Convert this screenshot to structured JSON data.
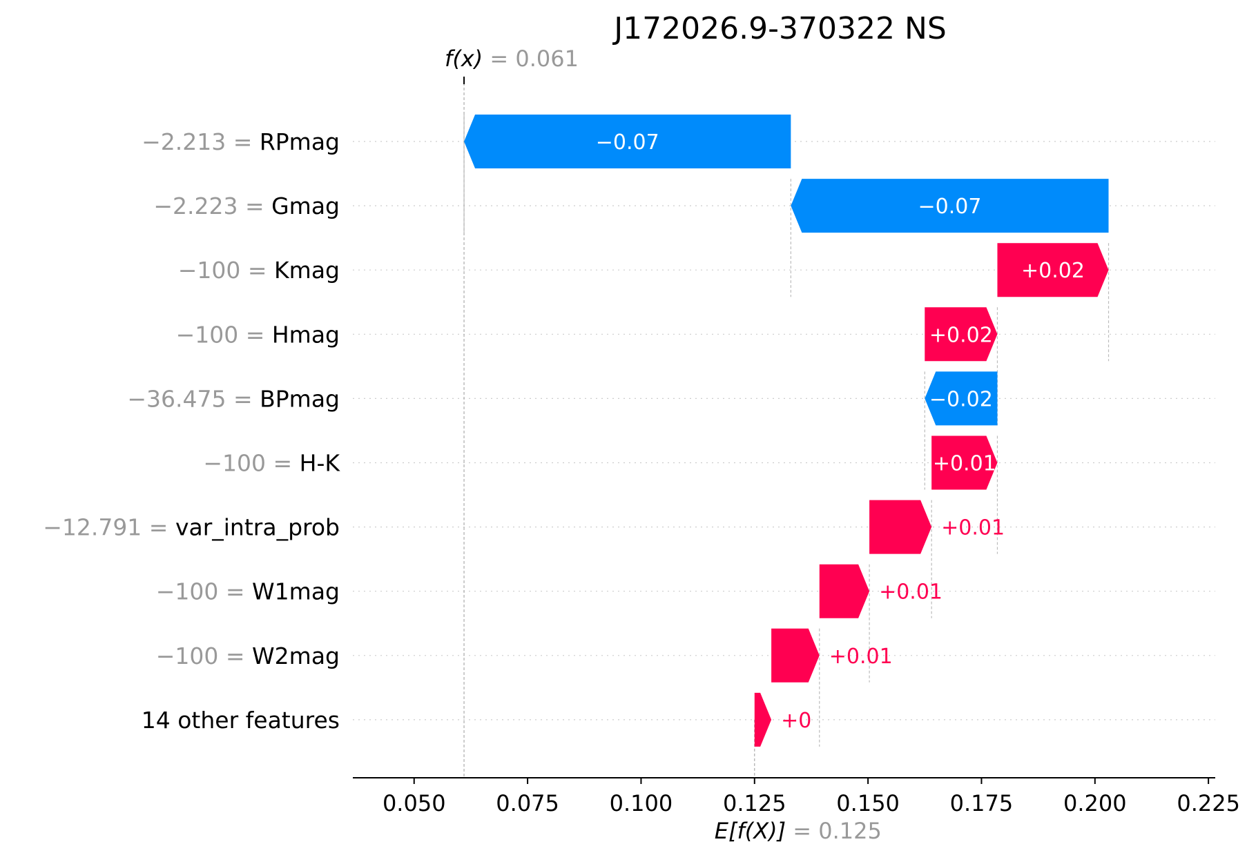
{
  "chart_data": {
    "type": "waterfall",
    "title": "J172026.9-370322 NS",
    "base_value": 0.125,
    "output_value": 0.061,
    "base_label_prefix": "E[f(X)]",
    "base_label_value": "= 0.125",
    "output_label_prefix": "f(x)",
    "output_label_value": "= 0.061",
    "xlim": [
      0.0365,
      0.2265
    ],
    "xticks": [
      0.05,
      0.075,
      0.1,
      0.125,
      0.15,
      0.175,
      0.2,
      0.225
    ],
    "xtick_labels": [
      "0.050",
      "0.075",
      "0.100",
      "0.125",
      "0.150",
      "0.175",
      "0.200",
      "0.225"
    ],
    "features": [
      {
        "value": "−2.213",
        "name": "RPmag",
        "start": 0.133,
        "end": 0.061,
        "label": "−0.07"
      },
      {
        "value": "−2.223",
        "name": "Gmag",
        "start": 0.203,
        "end": 0.133,
        "label": "−0.07"
      },
      {
        "value": "−100",
        "name": "Kmag",
        "start": 0.1785,
        "end": 0.203,
        "label": "+0.02"
      },
      {
        "value": "−100",
        "name": "Hmag",
        "start": 0.1625,
        "end": 0.1785,
        "label": "+0.02"
      },
      {
        "value": "−36.475",
        "name": "BPmag",
        "start": 0.1785,
        "end": 0.1625,
        "label": "−0.02"
      },
      {
        "value": "−100",
        "name": "H-K",
        "start": 0.164,
        "end": 0.1785,
        "label": "+0.01"
      },
      {
        "value": "−12.791",
        "name": "var_intra_prob",
        "start": 0.1503,
        "end": 0.164,
        "label": "+0.01"
      },
      {
        "value": "−100",
        "name": "W1mag",
        "start": 0.1393,
        "end": 0.1503,
        "label": "+0.01"
      },
      {
        "value": "−100",
        "name": "W2mag",
        "start": 0.1287,
        "end": 0.1393,
        "label": "+0.01"
      },
      {
        "value": "",
        "name": "14 other features",
        "start": 0.125,
        "end": 0.1287,
        "label": "+0"
      }
    ],
    "colors": {
      "positive": "#ff0051",
      "negative": "#008bfb",
      "positive_text": "#ff0051",
      "inside_text": "#ffffff",
      "muted": "#999999"
    }
  }
}
